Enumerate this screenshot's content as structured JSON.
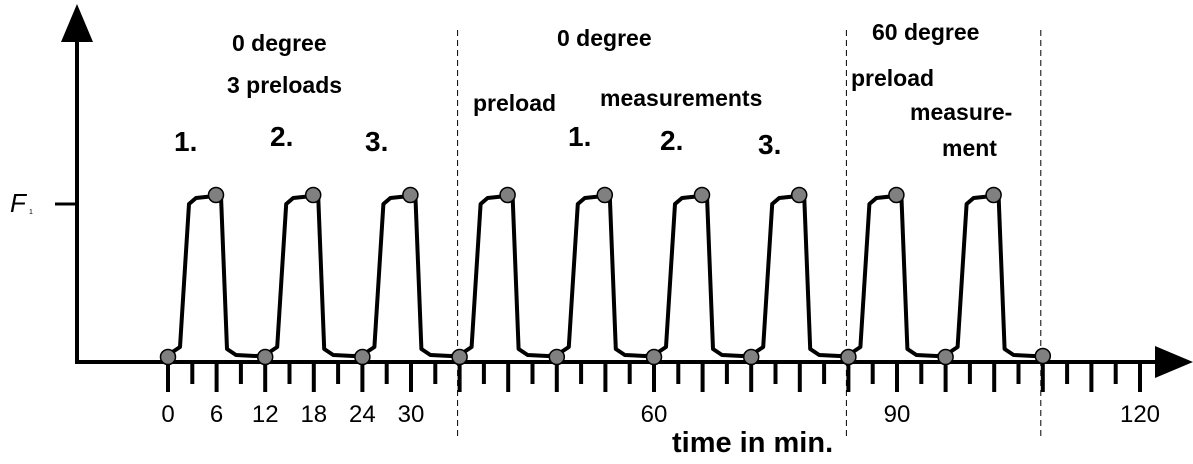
{
  "axes": {
    "y_tick_label_main": "F",
    "y_tick_label_sub": "1",
    "x_axis_title": "time in min.",
    "x_tick_labels": [
      {
        "t": 0,
        "text": "0"
      },
      {
        "t": 6,
        "text": "6"
      },
      {
        "t": 12,
        "text": "12"
      },
      {
        "t": 18,
        "text": "18"
      },
      {
        "t": 24,
        "text": "24"
      },
      {
        "t": 30,
        "text": "30"
      },
      {
        "t": 60,
        "text": "60"
      },
      {
        "t": 90,
        "text": "90"
      },
      {
        "t": 120,
        "text": "120"
      }
    ]
  },
  "phases": [
    {
      "heading": "0 degree",
      "subheading": "3 preloads"
    },
    {
      "heading": "0 degree",
      "preload_label": "preload",
      "measurement_label": "measurements"
    },
    {
      "heading": "60 degree",
      "preload_label": "preload",
      "measurement_label_line1": "measure-",
      "measurement_label_line2": "ment"
    }
  ],
  "cycle_numbers": {
    "preloads": [
      "1.",
      "2.",
      "3."
    ],
    "measurements": [
      "1.",
      "2.",
      "3."
    ]
  },
  "phase_boundaries_min": [
    36,
    84,
    108
  ],
  "pulses_start_min": [
    0,
    12,
    24,
    36,
    48,
    60,
    72,
    84,
    96
  ],
  "colors": {
    "line": "#000000",
    "marker": "#808080",
    "background": "#ffffff"
  }
}
